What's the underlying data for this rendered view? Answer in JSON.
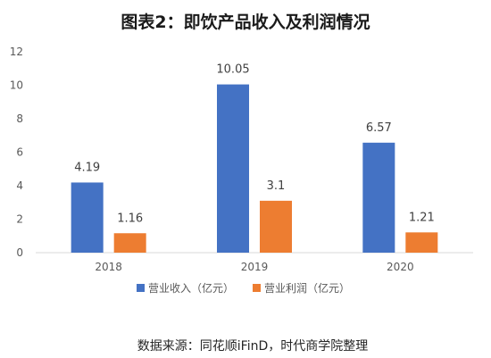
{
  "chart_data": {
    "type": "bar",
    "title": "图表2：即饮产品收入及利润情况",
    "categories": [
      "2018",
      "2019",
      "2020"
    ],
    "series": [
      {
        "name": "营业收入（亿元）",
        "values": [
          4.19,
          10.05,
          6.57
        ],
        "labels": [
          "4.19",
          "10.05",
          "6.57"
        ],
        "color": "#4472C4"
      },
      {
        "name": "营业利润（亿元）",
        "values": [
          1.16,
          3.1,
          1.21
        ],
        "labels": [
          "1.16",
          "3.1",
          "1.21"
        ],
        "color": "#ED7D31"
      }
    ],
    "ylim": [
      0,
      12
    ],
    "yticks": [
      0,
      2,
      4,
      6,
      8,
      10,
      12
    ],
    "grid": false,
    "legend": "bottom",
    "source": "数据来源：同花顺iFinD，时代商学院整理"
  }
}
